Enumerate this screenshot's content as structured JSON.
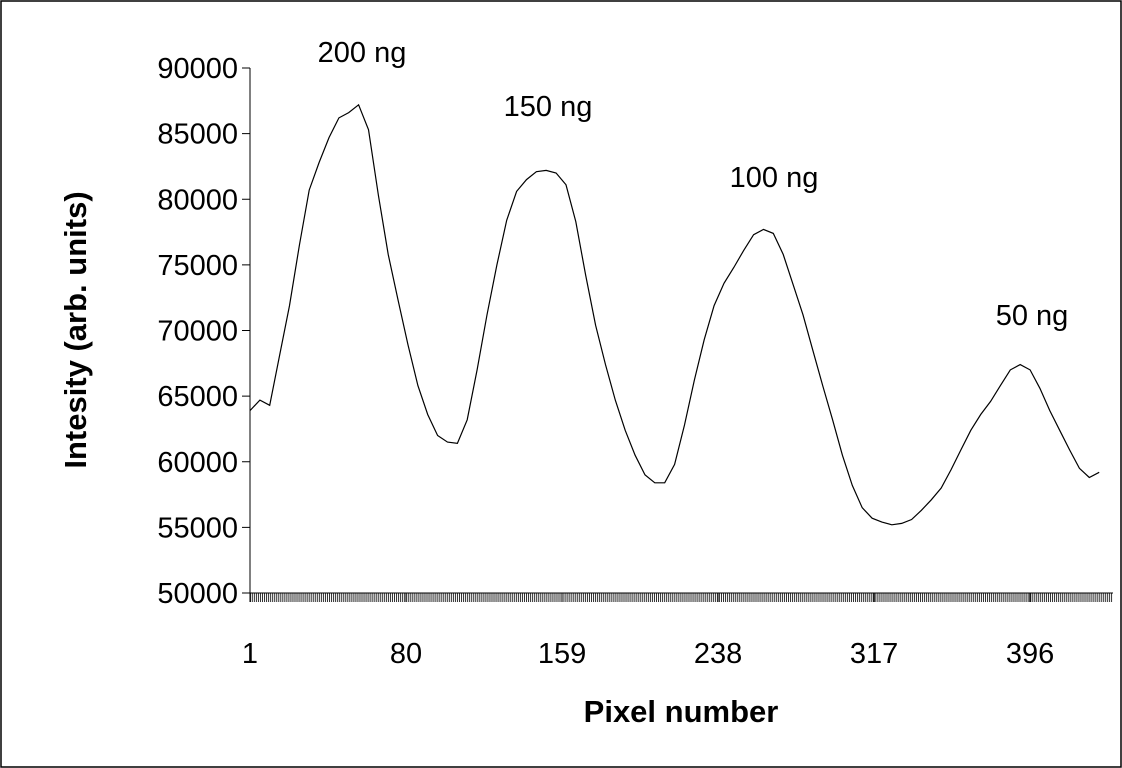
{
  "chart_data": {
    "type": "line",
    "x_label": "Pixel number",
    "y_label": "Intesity (arb. units)",
    "annotations": [
      "200 ng",
      "150 ng",
      "100 ng",
      "50 ng"
    ],
    "x": [
      1,
      6,
      11,
      16,
      21,
      26,
      31,
      36,
      41,
      46,
      51,
      56,
      61,
      66,
      71,
      76,
      81,
      86,
      91,
      96,
      101,
      106,
      111,
      116,
      121,
      126,
      131,
      136,
      141,
      146,
      151,
      156,
      161,
      166,
      171,
      176,
      181,
      186,
      191,
      196,
      201,
      206,
      211,
      216,
      221,
      226,
      231,
      236,
      241,
      246,
      251,
      256,
      261,
      266,
      271,
      276,
      281,
      286,
      291,
      296,
      301,
      306,
      311,
      316,
      321,
      326,
      331,
      336,
      341,
      346,
      351,
      356,
      361,
      366,
      371,
      376,
      381,
      386,
      391,
      396,
      401,
      406,
      411,
      416,
      421,
      426,
      431
    ],
    "series": [
      {
        "name": "Intensity",
        "color": "#000000",
        "values": [
          63900,
          64700,
          64300,
          68100,
          71900,
          76500,
          80700,
          82800,
          84700,
          86200,
          86600,
          87200,
          85300,
          80300,
          75800,
          72300,
          68900,
          65800,
          63600,
          62000,
          61500,
          61400,
          63200,
          67000,
          71200,
          75000,
          78400,
          80600,
          81500,
          82100,
          82200,
          82000,
          81100,
          78300,
          74200,
          70400,
          67400,
          64700,
          62400,
          60500,
          59000,
          58400,
          58400,
          59800,
          62800,
          66200,
          69300,
          71900,
          73600,
          74800,
          76100,
          77300,
          77700,
          77400,
          75800,
          73500,
          71200,
          68500,
          65800,
          63200,
          60500,
          58200,
          56500,
          55700,
          55400,
          55200,
          55300,
          55600,
          56300,
          57100,
          58000,
          59400,
          60900,
          62400,
          63600,
          64600,
          65800,
          67000,
          67400,
          67000,
          65600,
          63900,
          62400,
          60900,
          59500,
          58800,
          59200
        ]
      }
    ],
    "xlim": [
      1,
      438
    ],
    "ylim": [
      50000,
      90000
    ],
    "xticks": [
      1,
      80,
      159,
      238,
      317,
      396
    ],
    "yticks": [
      50000,
      55000,
      60000,
      65000,
      70000,
      75000,
      80000,
      85000,
      90000
    ]
  }
}
